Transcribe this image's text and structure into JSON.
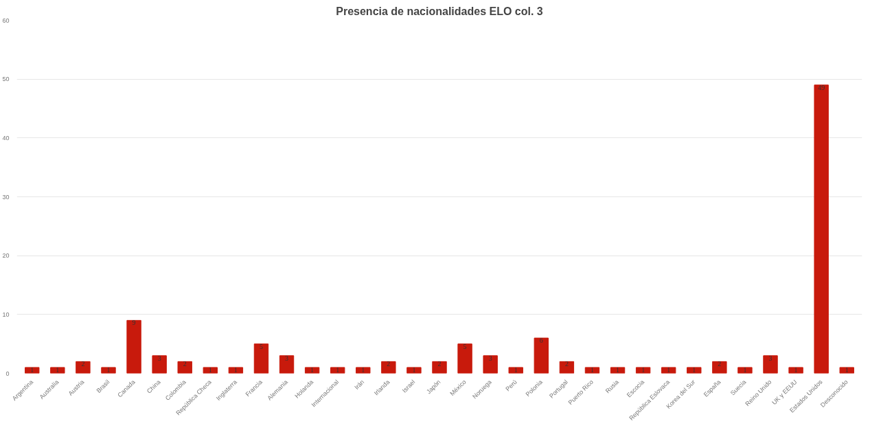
{
  "chart_data": {
    "type": "bar",
    "title": "Presencia de nacionalidades ELO col. 3",
    "categories": [
      "Argentina",
      "Australia",
      "Austria",
      "Brasil",
      "Canada",
      "China",
      "Colombia",
      "República Checa",
      "Inglaterra",
      "Francia",
      "Alemania",
      "Holanda",
      "Internacional",
      "Irán",
      "Irlanda",
      "Israel",
      "Japón",
      "México",
      "Noruega",
      "Perú",
      "Polonia",
      "Portugal",
      "Puerto Rico",
      "Rusia",
      "Escocia",
      "República Eslovaca",
      "Korea del Sur",
      "España",
      "Suecia",
      "Reino Unido",
      "UK y EEUU",
      "Estados Unidos",
      "Desconocido"
    ],
    "values": [
      1,
      1,
      2,
      1,
      9,
      3,
      2,
      1,
      1,
      5,
      3,
      1,
      1,
      1,
      2,
      1,
      2,
      5,
      3,
      1,
      6,
      2,
      1,
      1,
      1,
      1,
      1,
      2,
      1,
      3,
      1,
      49,
      1
    ],
    "color": "#c81a0c",
    "ylim": [
      0,
      60
    ],
    "yticks": [
      0,
      10,
      20,
      30,
      40,
      50,
      60
    ],
    "grid": "y",
    "data_labels": true
  }
}
